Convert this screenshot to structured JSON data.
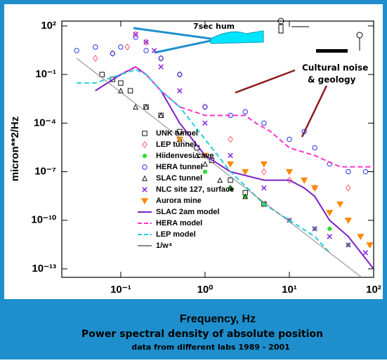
{
  "chart_data": {
    "type": "scatter-line",
    "xlabel": "Frequency, Hz",
    "ylabel": "micron**2/Hz",
    "xscale": "log",
    "yscale": "log",
    "xlim": [
      0.02,
      100
    ],
    "ylim": [
      3e-14,
      200
    ],
    "xticks": [
      {
        "value": 0.1,
        "label": "10⁻¹"
      },
      {
        "value": 1,
        "label": "10⁰"
      },
      {
        "value": 10,
        "label": "10¹"
      },
      {
        "value": 100,
        "label": "10²"
      }
    ],
    "yticks": [
      {
        "value": 100,
        "label": "10²"
      },
      {
        "value": 0.1,
        "label": "10⁻¹"
      },
      {
        "value": 0.0001,
        "label": "10⁻⁴"
      },
      {
        "value": 1e-07,
        "label": "10⁻⁷"
      },
      {
        "value": 1e-10,
        "label": "10⁻¹⁰"
      },
      {
        "value": 1e-13,
        "label": "10⁻¹³"
      }
    ],
    "series": [
      {
        "name": "UNK tunnel",
        "marker": "square",
        "color": "#111111",
        "x": [
          0.06,
          0.08,
          0.1,
          0.13,
          0.2,
          0.3,
          0.5,
          0.8,
          1.2,
          2,
          3,
          5
        ],
        "values": [
          0.1,
          0.05,
          0.03,
          0.01,
          0.001,
          0.0003,
          3e-05,
          3e-06,
          5e-07,
          3e-08,
          5e-09,
          1e-09
        ]
      },
      {
        "name": "LEP tunnel",
        "marker": "diamond",
        "color": "#ff5a6e",
        "x": [
          0.05,
          0.08,
          0.12,
          0.15,
          0.2,
          0.3,
          0.5,
          1,
          2,
          5,
          10,
          20,
          50
        ],
        "values": [
          1,
          2,
          5,
          30,
          10,
          1,
          0.1,
          0.001,
          1e-05,
          1e-07,
          3e-08,
          1e-08,
          1e-08
        ]
      },
      {
        "name": "Hiidenvesi cave",
        "marker": "star",
        "color": "#22dd22",
        "x": [
          0.5,
          1,
          2,
          3,
          5,
          10,
          20,
          30,
          50
        ],
        "values": [
          1e-05,
          1e-07,
          1e-08,
          3e-09,
          1e-09,
          1e-10,
          3e-11,
          3e-11,
          3e-12
        ]
      },
      {
        "name": "HERA tunnel",
        "marker": "circle",
        "color": "#2233ee",
        "x": [
          0.03,
          0.05,
          0.08,
          0.1,
          0.15,
          0.2,
          0.3,
          0.5,
          1,
          2,
          3,
          5,
          10,
          15,
          20,
          30,
          50,
          80
        ],
        "values": [
          3,
          5,
          2,
          5,
          20,
          3,
          1,
          0.1,
          0.001,
          0.0003,
          0.0005,
          0.0001,
          1e-05,
          3e-05,
          3e-06,
          3e-07,
          1e-07,
          1e-07
        ]
      },
      {
        "name": "SLAC tunnel",
        "marker": "triangle",
        "color": "#111111",
        "x": [
          0.1,
          0.15,
          0.2,
          0.3,
          0.5,
          0.8,
          1,
          1.5,
          2,
          3
        ],
        "values": [
          0.01,
          0.001,
          0.001,
          0.0003,
          1e-05,
          1e-06,
          3e-07,
          3e-08,
          1e-08,
          3e-09
        ]
      },
      {
        "name": "NLC site 127, surface",
        "marker": "x",
        "color": "#8a2be2",
        "x": [
          0.15,
          0.2,
          0.25,
          0.3,
          0.5,
          1,
          2,
          5,
          10,
          20,
          30,
          50,
          80
        ],
        "values": [
          30,
          10,
          3,
          0.3,
          0.01,
          0.0001,
          1e-06,
          1e-08,
          1e-10,
          3e-11,
          1e-11,
          3e-12,
          1e-12
        ]
      },
      {
        "name": "Aurora mine",
        "marker": "triangle-down",
        "color": "#ff8800",
        "x": [
          0.5,
          1,
          2,
          3,
          5,
          10,
          15,
          20,
          30,
          40,
          50,
          70,
          90
        ],
        "values": [
          1e-05,
          1e-06,
          3e-07,
          1e-07,
          3e-07,
          1e-07,
          3e-08,
          1e-08,
          3e-10,
          1e-09,
          1e-10,
          1e-11,
          3e-12
        ]
      },
      {
        "name": "SLAC 2am model",
        "marker": "line",
        "style": "solid",
        "color": "#7b1fc4",
        "x": [
          0.05,
          0.1,
          0.15,
          0.2,
          0.3,
          0.5,
          1,
          2,
          5,
          10,
          15,
          20,
          30,
          50,
          100
        ],
        "values": [
          0.01,
          0.1,
          0.3,
          0.1,
          0.01,
          0.0001,
          1e-06,
          1e-07,
          3e-08,
          3e-08,
          1e-08,
          3e-09,
          1e-10,
          1e-11,
          1e-13
        ]
      },
      {
        "name": "HERA model",
        "marker": "line",
        "style": "dashed",
        "color": "#ff33cc",
        "x": [
          0.1,
          0.15,
          0.2,
          0.3,
          0.5,
          1,
          2,
          3,
          4,
          6,
          10,
          20,
          40,
          100
        ],
        "values": [
          0.1,
          0.3,
          0.1,
          0.01,
          0.001,
          0.0003,
          0.0003,
          0.0003,
          0.0001,
          3e-05,
          3e-06,
          1e-06,
          2e-07,
          2e-07
        ]
      },
      {
        "name": "LEP model",
        "marker": "line",
        "style": "dashed",
        "color": "#22ccdd",
        "x": [
          0.03,
          0.05,
          0.1,
          0.15,
          0.2,
          0.3,
          0.5,
          1,
          2,
          5,
          10,
          20,
          30
        ],
        "values": [
          0.03,
          0.03,
          0.1,
          0.2,
          0.1,
          0.01,
          0.001,
          1e-05,
          1e-07,
          1e-09,
          1e-10,
          1e-11,
          1e-12
        ]
      },
      {
        "name": "1/w⁴",
        "marker": "line",
        "style": "solid",
        "color": "#888888",
        "x": [
          0.03,
          100
        ],
        "values": [
          1,
          8.1e-15
        ]
      }
    ],
    "annotations": [
      "7sec hum",
      "Cultural noise",
      "& geology"
    ],
    "footer": [
      "Power spectral density of absolute position",
      "data from different labs 1989 - 2001"
    ]
  }
}
